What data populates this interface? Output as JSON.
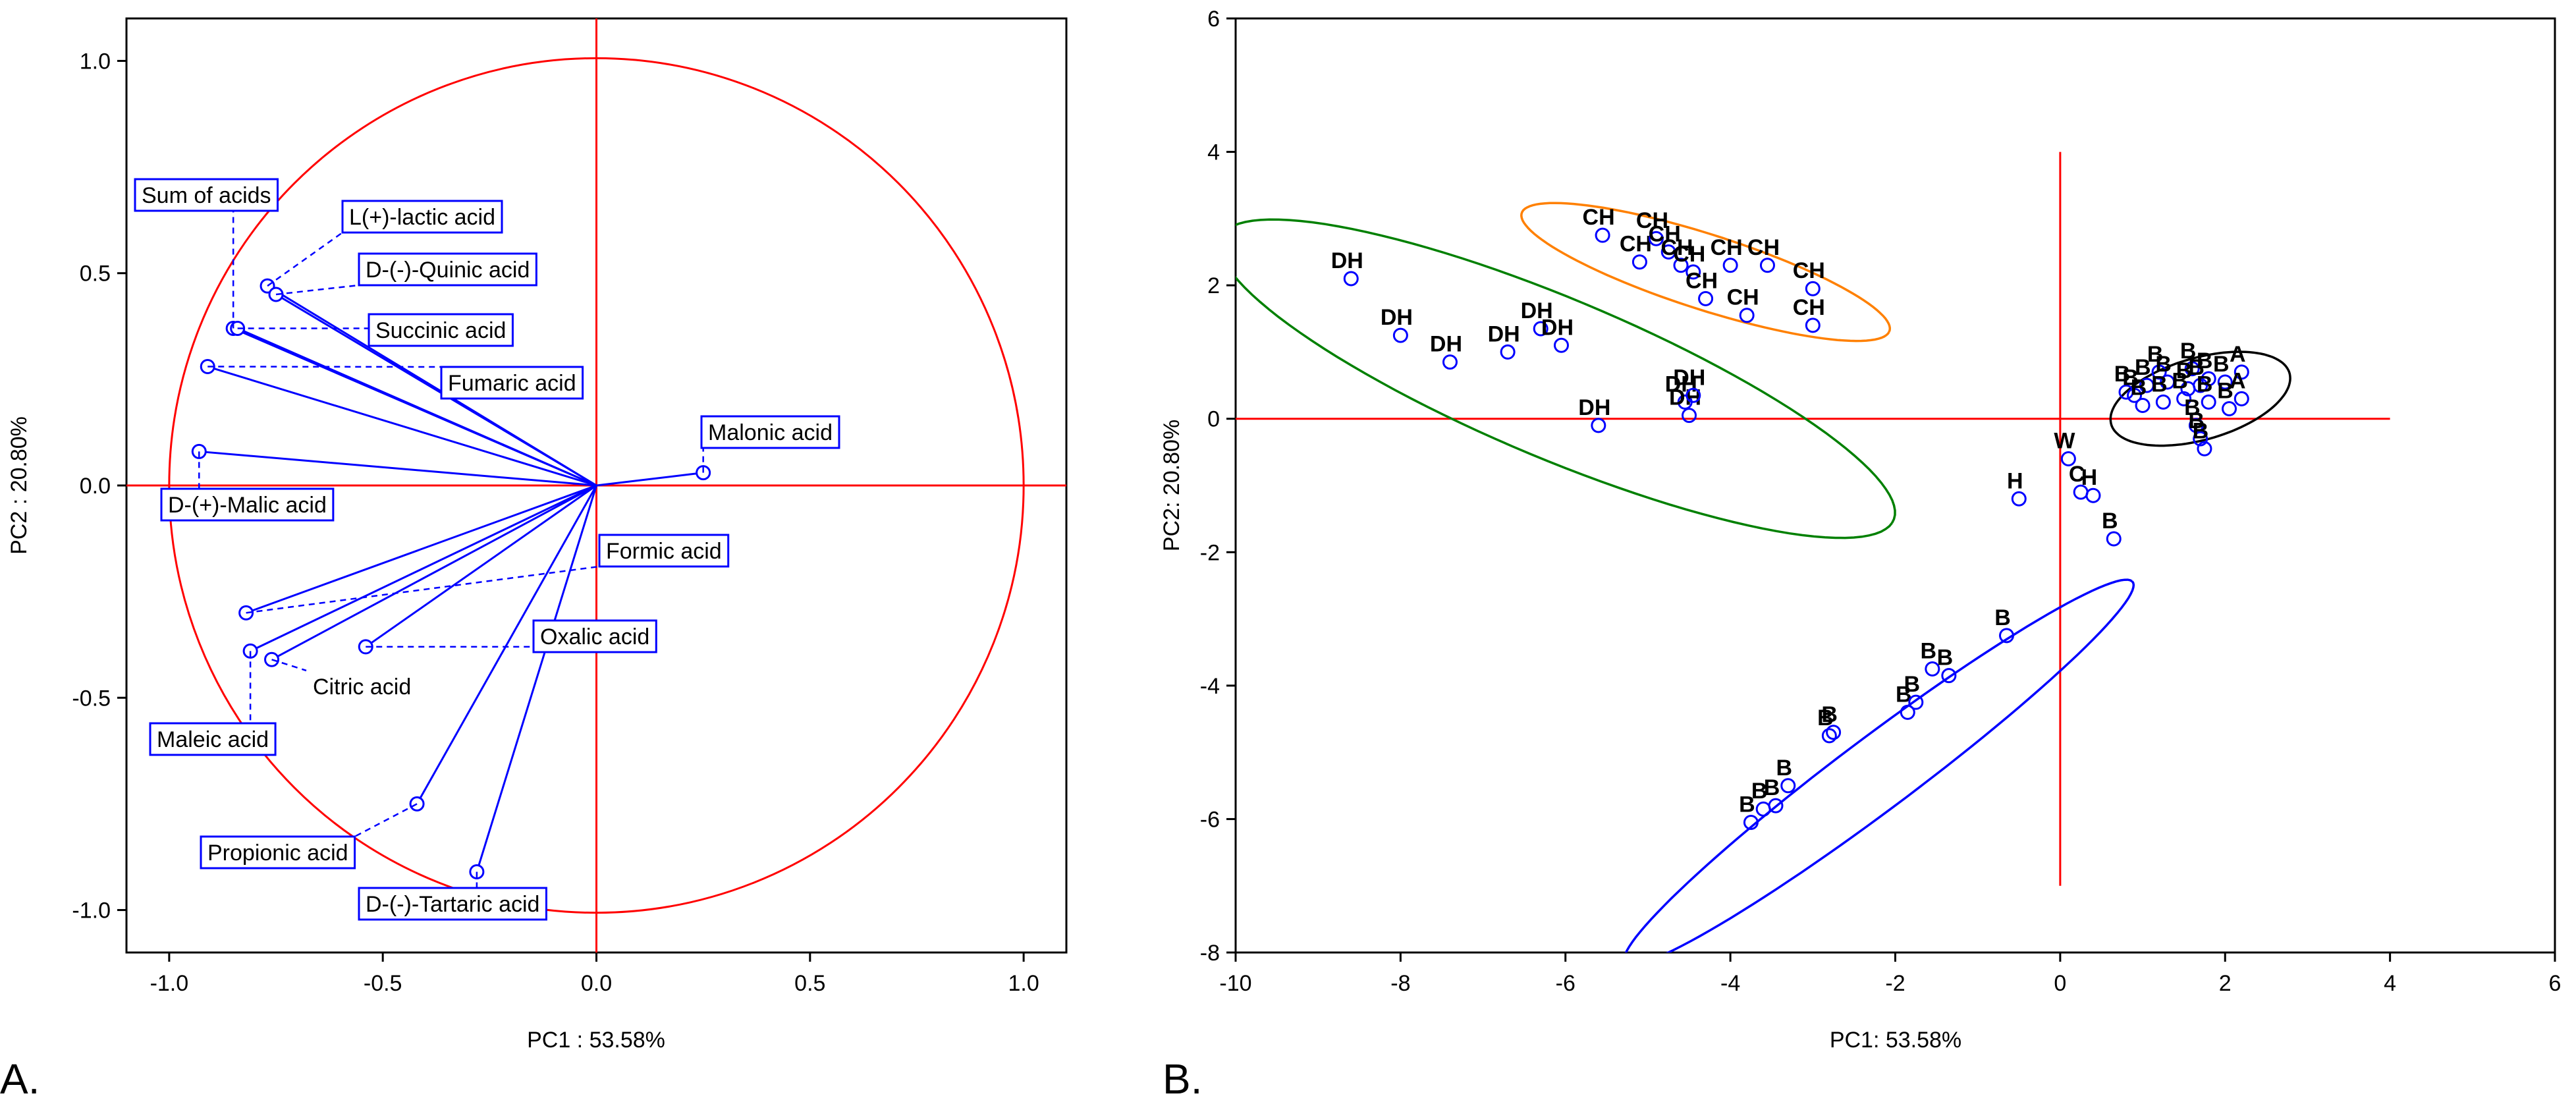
{
  "panels": [
    {
      "label": "A."
    },
    {
      "label": "B."
    }
  ],
  "chart_data": [
    {
      "type": "scatter",
      "subtype": "pca-loadings-correlation-circle",
      "panel": "A.",
      "xlabel": "PC1 : 53.58%",
      "ylabel": "PC2 : 20.80%",
      "xlim": [
        -1.1,
        1.1
      ],
      "ylim": [
        -1.1,
        1.1
      ],
      "xticks": [
        -1.0,
        -0.5,
        0.0,
        0.5,
        1.0
      ],
      "yticks": [
        -1.0,
        -0.5,
        0.0,
        0.5,
        1.0
      ],
      "xtick_labels": [
        "-1.0",
        "-0.5",
        "0.0",
        "0.5",
        "1.0"
      ],
      "ytick_labels": [
        "-1.0",
        "-0.5",
        "0.0",
        "0.5",
        "1.0"
      ],
      "grid": false,
      "circle_radius": 1.0,
      "colors": {
        "circle": "#ff0000",
        "axes": "#ff0000",
        "vectors": "#0000ff",
        "label_border": "#0000ff"
      },
      "variables": [
        {
          "name": "Sum of acids",
          "x": -0.85,
          "y": 0.37,
          "boxed": true
        },
        {
          "name": "L(+)-lactic acid",
          "x": -0.77,
          "y": 0.47,
          "boxed": true
        },
        {
          "name": "D-(-)-Quinic acid",
          "x": -0.75,
          "y": 0.45,
          "boxed": true
        },
        {
          "name": "Succinic acid",
          "x": -0.84,
          "y": 0.37,
          "boxed": true
        },
        {
          "name": "Fumaric acid",
          "x": -0.91,
          "y": 0.28,
          "boxed": true
        },
        {
          "name": "Malonic acid",
          "x": 0.25,
          "y": 0.03,
          "boxed": true
        },
        {
          "name": "D-(+)-Malic acid",
          "x": -0.93,
          "y": 0.08,
          "boxed": true
        },
        {
          "name": "Formic acid",
          "x": -0.82,
          "y": -0.3,
          "boxed": true
        },
        {
          "name": "Oxalic acid",
          "x": -0.54,
          "y": -0.38,
          "boxed": true
        },
        {
          "name": "Citric acid",
          "x": -0.76,
          "y": -0.41,
          "boxed": false
        },
        {
          "name": "Maleic acid",
          "x": -0.81,
          "y": -0.39,
          "boxed": true
        },
        {
          "name": "Propionic acid",
          "x": -0.42,
          "y": -0.75,
          "boxed": true
        },
        {
          "name": "D-(-)-Tartaric acid",
          "x": -0.28,
          "y": -0.91,
          "boxed": true
        }
      ]
    },
    {
      "type": "scatter",
      "subtype": "pca-scores",
      "panel": "B.",
      "xlabel": "PC1: 53.58%",
      "ylabel": "PC2: 20.80%",
      "xlim": [
        -10,
        6
      ],
      "ylim": [
        -8,
        6
      ],
      "xticks": [
        -10,
        -8,
        -6,
        -4,
        -2,
        0,
        2,
        4,
        6
      ],
      "yticks": [
        -8,
        -6,
        -4,
        -2,
        0,
        2,
        4,
        6
      ],
      "xtick_labels": [
        "-10",
        "-8",
        "-6",
        "-4",
        "-2",
        "0",
        "2",
        "4",
        "6"
      ],
      "ytick_labels": [
        "-8",
        "-6",
        "-4",
        "-2",
        "0",
        "2",
        "4",
        "6"
      ],
      "grid": false,
      "reference_lines": {
        "horizontal": {
          "y": 0,
          "x_from": -10,
          "x_to": 4
        },
        "vertical": {
          "x": 0,
          "y_from": -7,
          "y_to": 4
        }
      },
      "colors": {
        "points": "#0000ff",
        "reference_lines": "#ff0000"
      },
      "ellipses": [
        {
          "group": "DH",
          "color": "#008000",
          "cx": -6.1,
          "cy": 0.6,
          "rx": 4.6,
          "ry": 1.15,
          "angle_deg": -28
        },
        {
          "group": "CH",
          "color": "#ff8000",
          "cx": -4.3,
          "cy": 2.2,
          "rx": 2.4,
          "ry": 0.55,
          "angle_deg": -22
        },
        {
          "group": "B-low",
          "color": "#0000ff",
          "cx": -2.2,
          "cy": -5.3,
          "rx": 4.2,
          "ry": 0.5,
          "angle_deg": 43
        },
        {
          "group": "A",
          "color": "#000000",
          "cx": 1.7,
          "cy": 0.3,
          "rx": 1.15,
          "ry": 0.6,
          "angle_deg": 22
        }
      ],
      "points": [
        {
          "label": "DH",
          "x": -8.6,
          "y": 2.1
        },
        {
          "label": "DH",
          "x": -8.0,
          "y": 1.25
        },
        {
          "label": "DH",
          "x": -7.4,
          "y": 0.85
        },
        {
          "label": "DH",
          "x": -6.7,
          "y": 1.0
        },
        {
          "label": "DH",
          "x": -6.3,
          "y": 1.35
        },
        {
          "label": "DH",
          "x": -6.05,
          "y": 1.1
        },
        {
          "label": "DH",
          "x": -5.6,
          "y": -0.1
        },
        {
          "label": "DH",
          "x": -4.55,
          "y": 0.25
        },
        {
          "label": "DH",
          "x": -4.5,
          "y": 0.05
        },
        {
          "label": "DH",
          "x": -4.45,
          "y": 0.35
        },
        {
          "label": "CH",
          "x": -5.55,
          "y": 2.75
        },
        {
          "label": "CH",
          "x": -5.1,
          "y": 2.35
        },
        {
          "label": "CH",
          "x": -4.9,
          "y": 2.7
        },
        {
          "label": "CH",
          "x": -4.75,
          "y": 2.5
        },
        {
          "label": "CH",
          "x": -4.6,
          "y": 2.3
        },
        {
          "label": "CH",
          "x": -4.45,
          "y": 2.2
        },
        {
          "label": "CH",
          "x": -4.3,
          "y": 1.8
        },
        {
          "label": "CH",
          "x": -4.0,
          "y": 2.3
        },
        {
          "label": "CH",
          "x": -3.8,
          "y": 1.55
        },
        {
          "label": "CH",
          "x": -3.55,
          "y": 2.3
        },
        {
          "label": "CH",
          "x": -3.0,
          "y": 1.95
        },
        {
          "label": "CH",
          "x": -3.0,
          "y": 1.4
        },
        {
          "label": "B",
          "x": -3.75,
          "y": -6.05
        },
        {
          "label": "B",
          "x": -3.6,
          "y": -5.85
        },
        {
          "label": "B",
          "x": -3.45,
          "y": -5.8
        },
        {
          "label": "B",
          "x": -3.3,
          "y": -5.5
        },
        {
          "label": "B",
          "x": -2.8,
          "y": -4.75
        },
        {
          "label": "B",
          "x": -2.75,
          "y": -4.7
        },
        {
          "label": "B",
          "x": -1.85,
          "y": -4.4
        },
        {
          "label": "B",
          "x": -1.75,
          "y": -4.25
        },
        {
          "label": "B",
          "x": -1.55,
          "y": -3.75
        },
        {
          "label": "B",
          "x": -1.35,
          "y": -3.85
        },
        {
          "label": "B",
          "x": -0.65,
          "y": -3.25
        },
        {
          "label": "H",
          "x": -0.5,
          "y": -1.2
        },
        {
          "label": "W",
          "x": 0.1,
          "y": -0.6
        },
        {
          "label": "C",
          "x": 0.25,
          "y": -1.1
        },
        {
          "label": "H",
          "x": 0.4,
          "y": -1.15
        },
        {
          "label": "B",
          "x": 0.65,
          "y": -1.8
        },
        {
          "label": "B",
          "x": 1.2,
          "y": 0.7
        },
        {
          "label": "B",
          "x": 1.6,
          "y": 0.75
        },
        {
          "label": "B",
          "x": 1.8,
          "y": 0.6
        },
        {
          "label": "A",
          "x": 2.2,
          "y": 0.7
        },
        {
          "label": "B",
          "x": 0.8,
          "y": 0.4
        },
        {
          "label": "B",
          "x": 0.9,
          "y": 0.35
        },
        {
          "label": "B",
          "x": 1.05,
          "y": 0.5
        },
        {
          "label": "B",
          "x": 1.3,
          "y": 0.55
        },
        {
          "label": "B",
          "x": 1.55,
          "y": 0.45
        },
        {
          "label": "B",
          "x": 1.7,
          "y": 0.5
        },
        {
          "label": "B",
          "x": 2.0,
          "y": 0.55
        },
        {
          "label": "A",
          "x": 2.2,
          "y": 0.3
        },
        {
          "label": "B",
          "x": 1.0,
          "y": 0.2
        },
        {
          "label": "B",
          "x": 1.25,
          "y": 0.25
        },
        {
          "label": "B",
          "x": 1.5,
          "y": 0.3
        },
        {
          "label": "B",
          "x": 1.8,
          "y": 0.25
        },
        {
          "label": "B",
          "x": 2.05,
          "y": 0.15
        },
        {
          "label": "B",
          "x": 1.65,
          "y": -0.1
        },
        {
          "label": "B",
          "x": 1.7,
          "y": -0.3
        },
        {
          "label": "B",
          "x": 1.75,
          "y": -0.45
        }
      ]
    }
  ]
}
